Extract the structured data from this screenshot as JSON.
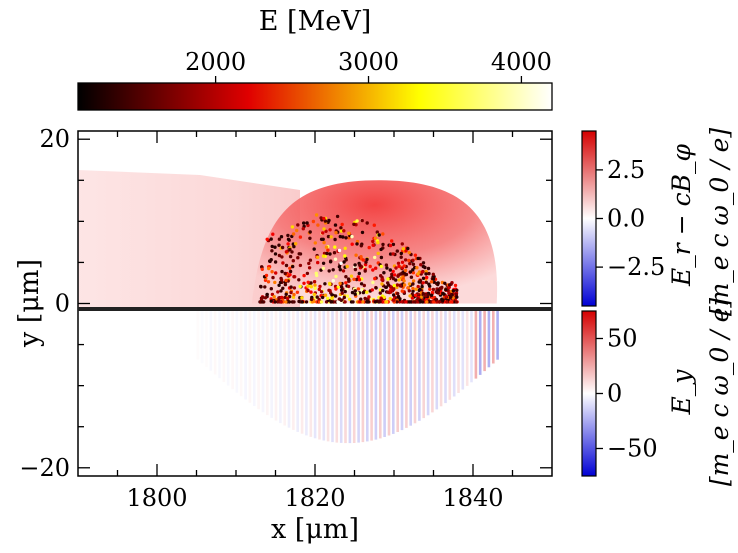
{
  "chart_data": {
    "type": "heatmap",
    "energy_colorbar": {
      "label": "E [MeV]",
      "ticks": [
        2000,
        3000,
        4000
      ],
      "range": [
        1100,
        4200
      ],
      "colormap": "hot",
      "placement": "top"
    },
    "main_axes": {
      "xlabel": "x [μm]",
      "ylabel": "y [μm]",
      "xlim": [
        1790,
        1850
      ],
      "ylim": [
        -21,
        21
      ],
      "xticks": [
        1800,
        1820,
        1840
      ],
      "yticks": [
        20,
        0,
        -20
      ],
      "ytick_labels": [
        "20",
        "0",
        "−20"
      ]
    },
    "upper_panel": {
      "field": "Er − cBφ",
      "colorbar_label_1": "E_r − cB_φ",
      "colorbar_label_2": "[m_e c ω_0 / e]",
      "colorbar_ticks": [
        "2.5",
        "0.0",
        "−2.5"
      ],
      "colorbar_tick_values": [
        2.5,
        0.0,
        -2.5
      ],
      "colorbar_range": [
        -4.5,
        4.5
      ],
      "colormap": "bwr",
      "bubble": {
        "x_center": 1828,
        "x_left": 1812,
        "x_right": 1843,
        "y_top": 15
      },
      "particles": {
        "x_range": [
          1813,
          1838
        ],
        "y_range": [
          0,
          11
        ],
        "energy_range": [
          1100,
          4200
        ]
      }
    },
    "lower_panel": {
      "field": "Ey",
      "colorbar_label_1": "E_y",
      "colorbar_label_2": "[m_e c ω_0 / e]",
      "colorbar_ticks": [
        "50",
        "0",
        "−50"
      ],
      "colorbar_tick_values": [
        50,
        0,
        -50
      ],
      "colorbar_range": [
        -75,
        75
      ],
      "colormap": "bwr",
      "oscillation_region": {
        "x_range": [
          1805,
          1843
        ],
        "y_range": [
          -17,
          0
        ]
      }
    }
  }
}
